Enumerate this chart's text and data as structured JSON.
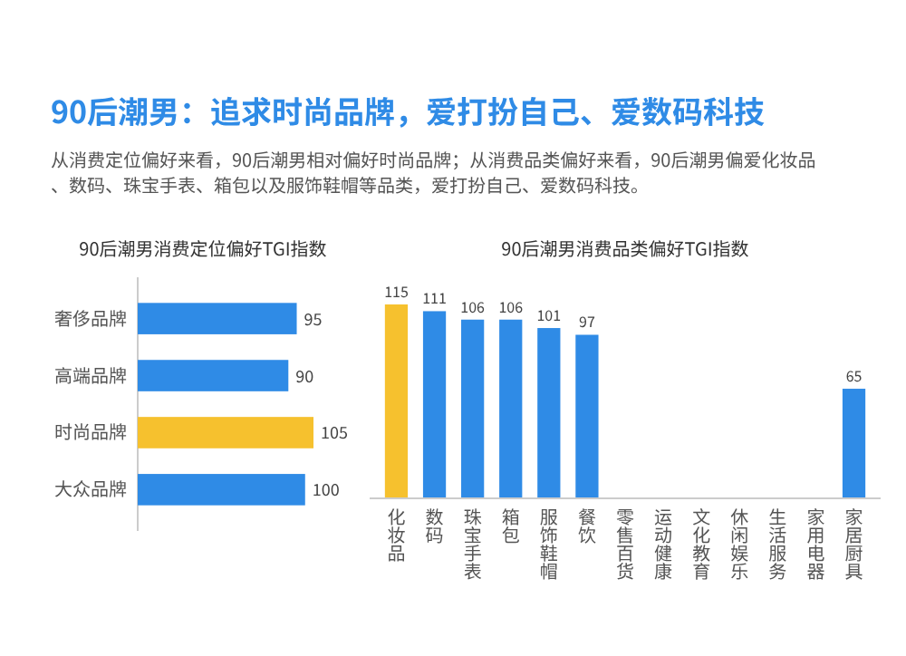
{
  "chart_data": [
    {
      "type": "bar",
      "orientation": "horizontal",
      "title": "90后潮男消费定位偏好TGI指数",
      "annotations": [
        "90后潮男：追求时尚品牌，爱打扮自己、爱数码科技",
        "从消费定位偏好来看，90后潮男相对偏好时尚品牌；从消费品类偏好来看，90后潮男偏爱化妆品、数码、珠宝手表、箱包以及服饰鞋帽等品类，爱打扮自己、爱数码科技。"
      ],
      "categories": [
        "奢侈品牌",
        "高端品牌",
        "时尚品牌",
        "大众品牌"
      ],
      "values": [
        95,
        90,
        105,
        100
      ],
      "colors": [
        "#2f8be6",
        "#2f8be6",
        "#f6c12e",
        "#2f8be6"
      ],
      "data_labels": true
    },
    {
      "type": "bar",
      "title": "90后潮男消费品类偏好TGI指数",
      "categories": [
        "化妆品",
        "数码",
        "珠宝手表",
        "箱包",
        "服饰鞋帽",
        "餐饮",
        "零售百货",
        "运动健康",
        "文化教育",
        "休闲娱乐",
        "生活服务",
        "家用电器",
        "家居厨具"
      ],
      "values": [
        115,
        111,
        106,
        106,
        101,
        97,
        null,
        null,
        null,
        null,
        null,
        null,
        65
      ],
      "colors": [
        "#f6c12e",
        "#2f8be6",
        "#2f8be6",
        "#2f8be6",
        "#2f8be6",
        "#2f8be6",
        null,
        null,
        null,
        null,
        null,
        null,
        "#2f8be6"
      ],
      "data_labels": true
    }
  ]
}
